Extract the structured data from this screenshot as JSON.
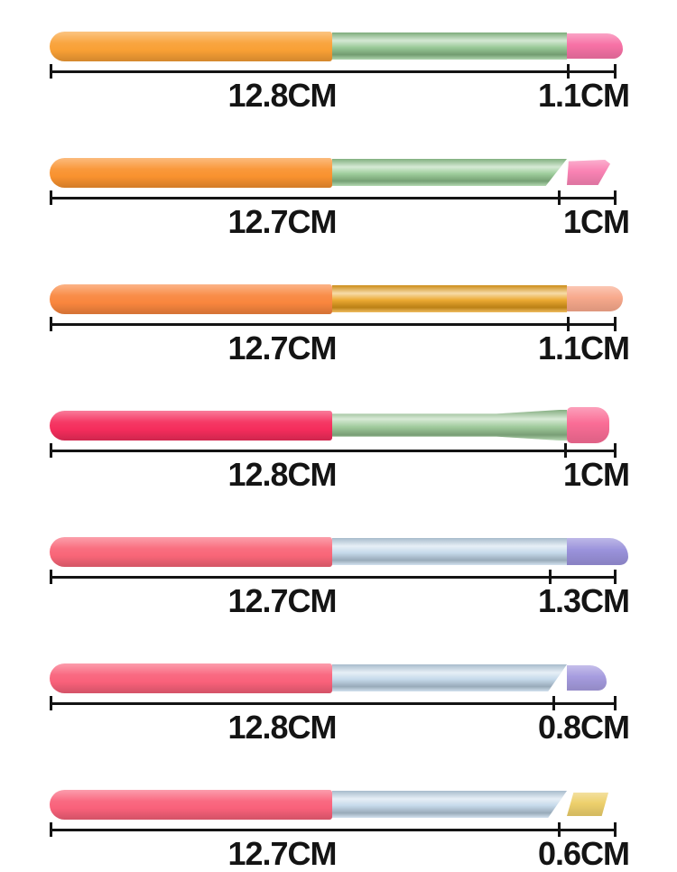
{
  "colors": {
    "background": "#FFFFFF",
    "ruler_line": "#141414",
    "label_text": "#141414"
  },
  "brushes": [
    {
      "name": "brush-orange-green-round",
      "handle_color": "#F9A035",
      "ferrule_color": "#8FC48D",
      "tip_color": "#F772A6",
      "tip_shape": "rounded bullet",
      "main_length_label": "12.8CM",
      "tip_length_label": "1.1CM"
    },
    {
      "name": "brush-orange-green-angled",
      "handle_color": "#F9922F",
      "ferrule_color": "#93C891",
      "tip_color": "#F983B4",
      "tip_shape": "angled wedge",
      "main_length_label": "12.7CM",
      "tip_length_label": "1CM"
    },
    {
      "name": "brush-orange-gold-round",
      "handle_color": "#F9863E",
      "ferrule_color": "#E9A01B",
      "tip_color": "#F8A98C",
      "tip_shape": "rounded bullet",
      "main_length_label": "12.7CM",
      "tip_length_label": "1.1CM"
    },
    {
      "name": "brush-red-green-flat",
      "handle_color": "#F52D5C",
      "ferrule_color": "#97C693",
      "tip_color": "#FA6D96",
      "tip_shape": "flat paddle",
      "main_length_label": "12.8CM",
      "tip_length_label": "1CM"
    },
    {
      "name": "brush-pink-silver-round",
      "handle_color": "#F96678",
      "ferrule_color": "#BFD5E8",
      "tip_color": "#9A92DB",
      "tip_shape": "rounded angled",
      "main_length_label": "12.7CM",
      "tip_length_label": "1.3CM"
    },
    {
      "name": "brush-pink-silver-small-round",
      "handle_color": "#F9617A",
      "ferrule_color": "#BFD5E8",
      "tip_color": "#A69CDF",
      "tip_shape": "small rounded",
      "main_length_label": "12.8CM",
      "tip_length_label": "0.8CM"
    },
    {
      "name": "brush-pink-silver-angled-yellow",
      "handle_color": "#F9617A",
      "ferrule_color": "#BFD5E8",
      "tip_color": "#EDD06C",
      "tip_shape": "angled flat",
      "main_length_label": "12.7CM",
      "tip_length_label": "0.6CM"
    }
  ]
}
